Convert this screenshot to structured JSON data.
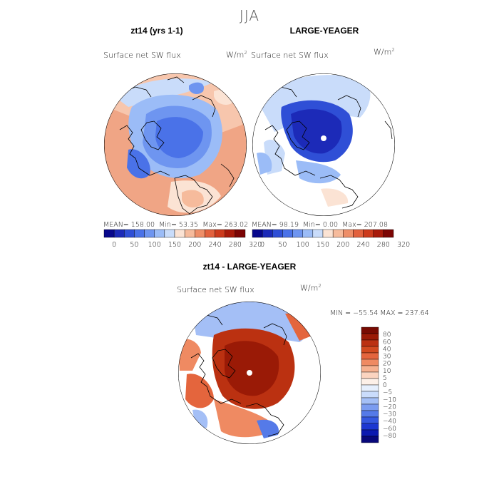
{
  "page": {
    "title": "JJA"
  },
  "panels": [
    {
      "title": "zt14 (yrs 1-1)",
      "variable": "Surface net SW flux",
      "unit_base": "W/m",
      "unit_exp": "2",
      "stats": {
        "mean_label": "MEAN=",
        "mean": "158.00",
        "min_label": "Min=",
        "min": "53.35",
        "max_label": "Max=",
        "max": "263.02"
      }
    },
    {
      "title": "LARGE-YEAGER",
      "variable": "Surface net SW flux",
      "unit_base": "W/m",
      "unit_exp": "2",
      "stats": {
        "mean_label": "MEAN=",
        "mean": " 98.19",
        "min_label": "Min=",
        "min": "0.00",
        "max_label": "Max=",
        "max": "207.08"
      }
    },
    {
      "title": "zt14 - LARGE-YEAGER",
      "variable": "Surface net SW flux",
      "unit_base": "W/m",
      "unit_exp": "2",
      "stats_text": "MIN = −55.54  MAX = 237.64"
    }
  ],
  "colors": {
    "abs_scale": [
      "#08088c",
      "#1c2ab8",
      "#2f4fd6",
      "#4a72e8",
      "#6e95f0",
      "#9bbcf7",
      "#c9dcfa",
      "#fbe3d4",
      "#f6bb9c",
      "#ee8e68",
      "#e2613d",
      "#cc3a1c",
      "#a81a0a",
      "#7c0504"
    ],
    "diff_scale": [
      "#08087a",
      "#0b19b0",
      "#1c37d1",
      "#3558e0",
      "#557ae8",
      "#7b9cf0",
      "#a4bff6",
      "#cadcfb",
      "#e6effd",
      "#fdf0e8",
      "#fbd4c0",
      "#f6b190",
      "#ef8a62",
      "#e4653d",
      "#d24a1f",
      "#bb3111",
      "#9a1a06",
      "#780b02"
    ]
  },
  "chart_data": [
    {
      "type": "heatmap",
      "title": "zt14 (yrs 1-1)",
      "variable": "Surface net SW flux",
      "units": "W/m2",
      "projection": "north polar stereographic",
      "colorbar_ticks": [
        "0",
        "50",
        "100",
        "150",
        "200",
        "240",
        "280",
        "320"
      ],
      "summary": {
        "mean": 158.0,
        "min": 53.35,
        "max": 263.02
      }
    },
    {
      "type": "heatmap",
      "title": "LARGE-YEAGER",
      "variable": "Surface net SW flux",
      "units": "W/m2",
      "projection": "north polar stereographic",
      "colorbar_ticks": [
        "0",
        "50",
        "100",
        "150",
        "200",
        "240",
        "280",
        "320"
      ],
      "summary": {
        "mean": 98.19,
        "min": 0.0,
        "max": 207.08
      }
    },
    {
      "type": "heatmap",
      "title": "zt14 - LARGE-YEAGER",
      "variable": "Surface net SW flux",
      "units": "W/m2",
      "projection": "north polar stereographic",
      "colorbar_ticks": [
        "80",
        "60",
        "40",
        "30",
        "20",
        "10",
        "5",
        "0",
        "−5",
        "−10",
        "−20",
        "−30",
        "−40",
        "−60",
        "−80"
      ],
      "summary": {
        "min": -55.54,
        "max": 237.64
      }
    }
  ]
}
